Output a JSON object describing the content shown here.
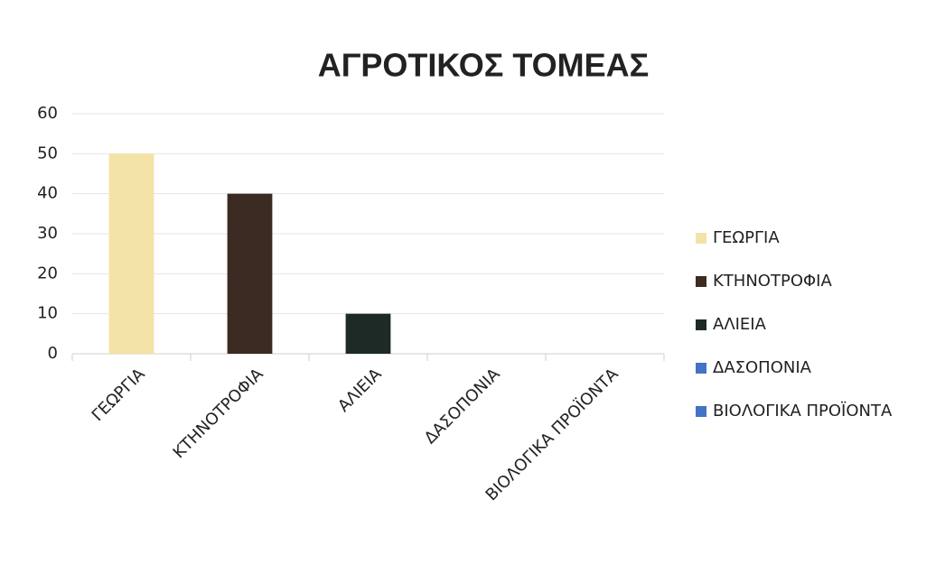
{
  "chart_data": {
    "type": "bar",
    "title": "ΑΓΡΟΤΙΚΟΣ ΤΟΜΕΑΣ",
    "categories": [
      "ΓΕΩΡΓΙΑ",
      "ΚΤΗΝΟΤΡΟΦΙΑ",
      "ΑΛΙΕΙΑ",
      "ΔΑΣΟΠΟΝΙΑ",
      "ΒΙΟΛΟΓΙΚΑ ΠΡΟΪΟΝΤΑ"
    ],
    "values": [
      50,
      40,
      10,
      0,
      0
    ],
    "colors": [
      "#f3e3a6",
      "#3b2b22",
      "#1d2a25",
      "#4472c4",
      "#4472c4"
    ],
    "ylim": [
      0,
      60
    ],
    "yticks": [
      0,
      10,
      20,
      30,
      40,
      50,
      60
    ],
    "grid": true,
    "legend": "right"
  }
}
